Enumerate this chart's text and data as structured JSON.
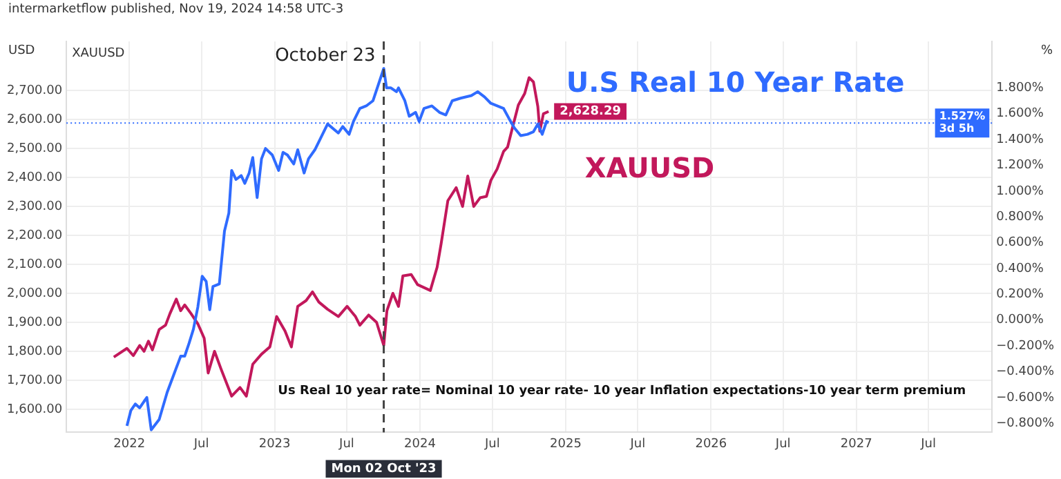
{
  "chart_data": {
    "type": "line",
    "title": "intermarketflow published, Nov 19, 2024 14:58 UTC-3",
    "subtitle": "XAUUSD",
    "ylabel": "USD",
    "y2label": "%",
    "xlim": [
      "2021-07-27",
      "2027-12-08"
    ],
    "xticks": [
      {
        "value": "2022-01-01",
        "label": "2022"
      },
      {
        "value": "2022-07-01",
        "label": "Jul"
      },
      {
        "value": "2023-01-01",
        "label": "2023"
      },
      {
        "value": "2023-07-01",
        "label": "Jul"
      },
      {
        "value": "2024-01-01",
        "label": "2024"
      },
      {
        "value": "2024-07-01",
        "label": "Jul"
      },
      {
        "value": "2025-01-01",
        "label": "2025"
      },
      {
        "value": "2025-07-01",
        "label": "Jul"
      },
      {
        "value": "2026-01-01",
        "label": "2026"
      },
      {
        "value": "2026-07-01",
        "label": "Jul"
      },
      {
        "value": "2027-01-01",
        "label": "2027"
      },
      {
        "value": "2027-07-01",
        "label": "Jul"
      }
    ],
    "ylim": [
      1520,
      2870
    ],
    "yticks": [
      {
        "value": 1600,
        "label": "1,600.00"
      },
      {
        "value": 1700,
        "label": "1,700.00"
      },
      {
        "value": 1800,
        "label": "1,800.00"
      },
      {
        "value": 1900,
        "label": "1,900.00"
      },
      {
        "value": 2000,
        "label": "2,000.00"
      },
      {
        "value": 2100,
        "label": "2,100.00"
      },
      {
        "value": 2200,
        "label": "2,200.00"
      },
      {
        "value": 2300,
        "label": "2,300.00"
      },
      {
        "value": 2400,
        "label": "2,400.00"
      },
      {
        "value": 2500,
        "label": "2,500.00"
      },
      {
        "value": 2600,
        "label": "2,600.00"
      },
      {
        "value": 2700,
        "label": "2,700.00"
      }
    ],
    "y2lim": [
      -0.87,
      2.16
    ],
    "y2ticks": [
      {
        "value": -0.8,
        "label": "−0.800%"
      },
      {
        "value": -0.6,
        "label": "−0.600%"
      },
      {
        "value": -0.4,
        "label": "−0.400%"
      },
      {
        "value": -0.2,
        "label": "−0.200%"
      },
      {
        "value": 0,
        "label": "0.000%"
      },
      {
        "value": 0.2,
        "label": "0.200%"
      },
      {
        "value": 0.4,
        "label": "0.400%"
      },
      {
        "value": 0.6,
        "label": "0.600%"
      },
      {
        "value": 0.8,
        "label": "0.800%"
      },
      {
        "value": 1.0,
        "label": "1.000%"
      },
      {
        "value": 1.2,
        "label": "1.200%"
      },
      {
        "value": 1.4,
        "label": "1.400%"
      },
      {
        "value": 1.6,
        "label": "1.600%"
      },
      {
        "value": 1.8,
        "label": "1.800%"
      }
    ],
    "grid": true,
    "legend": "top right",
    "marker": "none",
    "series": [
      {
        "name": "U.S Real 10 Year Rate",
        "color": "#2f6bff",
        "axis": "y2",
        "x": [
          "2021-12-26",
          "2022-01-05",
          "2022-01-16",
          "2022-01-27",
          "2022-02-07",
          "2022-02-14",
          "2022-02-25",
          "2022-03-17",
          "2022-04-06",
          "2022-04-23",
          "2022-05-10",
          "2022-05-20",
          "2022-05-31",
          "2022-06-11",
          "2022-06-22",
          "2022-07-03",
          "2022-07-13",
          "2022-07-22",
          "2022-07-30",
          "2022-08-15",
          "2022-08-28",
          "2022-09-08",
          "2022-09-15",
          "2022-09-26",
          "2022-10-09",
          "2022-10-18",
          "2022-10-29",
          "2022-11-07",
          "2022-11-18",
          "2022-11-29",
          "2022-12-09",
          "2022-12-26",
          "2023-01-11",
          "2023-01-22",
          "2023-02-02",
          "2023-02-18",
          "2023-02-28",
          "2023-03-16",
          "2023-03-27",
          "2023-04-12",
          "2023-04-28",
          "2023-05-14",
          "2023-06-10",
          "2023-06-21",
          "2023-07-07",
          "2023-07-18",
          "2023-08-03",
          "2023-08-19",
          "2023-09-05",
          "2023-10-02",
          "2023-10-09",
          "2023-10-20",
          "2023-11-03",
          "2023-11-08",
          "2023-11-24",
          "2023-12-05",
          "2023-12-21",
          "2023-12-30",
          "2024-01-11",
          "2024-01-31",
          "2024-02-19",
          "2024-03-06",
          "2024-03-22",
          "2024-04-12",
          "2024-05-09",
          "2024-05-25",
          "2024-06-11",
          "2024-06-27",
          "2024-07-13",
          "2024-07-29",
          "2024-08-12",
          "2024-08-25",
          "2024-09-10",
          "2024-09-27",
          "2024-10-12",
          "2024-10-23",
          "2024-11-03",
          "2024-11-14",
          "2024-11-19"
        ],
        "values": [
          -0.82,
          -0.7,
          -0.65,
          -0.68,
          -0.63,
          -0.6,
          -0.85,
          -0.77,
          -0.56,
          -0.42,
          -0.28,
          -0.28,
          -0.18,
          -0.07,
          0.1,
          0.34,
          0.3,
          0.08,
          0.26,
          0.28,
          0.69,
          0.83,
          1.16,
          1.09,
          1.12,
          1.06,
          1.14,
          1.26,
          0.95,
          1.25,
          1.33,
          1.28,
          1.16,
          1.3,
          1.28,
          1.21,
          1.32,
          1.14,
          1.25,
          1.32,
          1.42,
          1.52,
          1.45,
          1.5,
          1.44,
          1.54,
          1.64,
          1.66,
          1.7,
          1.95,
          1.8,
          1.8,
          1.77,
          1.8,
          1.7,
          1.58,
          1.61,
          1.54,
          1.64,
          1.66,
          1.61,
          1.59,
          1.7,
          1.72,
          1.74,
          1.77,
          1.73,
          1.68,
          1.66,
          1.64,
          1.56,
          1.49,
          1.43,
          1.44,
          1.46,
          1.52,
          1.44,
          1.54,
          1.53
        ]
      },
      {
        "name": "XAUUSD",
        "color": "#c2185b",
        "axis": "y",
        "x": [
          "2021-11-23",
          "2021-12-26",
          "2022-01-11",
          "2022-01-27",
          "2022-02-07",
          "2022-02-18",
          "2022-02-28",
          "2022-03-17",
          "2022-04-02",
          "2022-04-13",
          "2022-04-29",
          "2022-05-10",
          "2022-05-20",
          "2022-06-05",
          "2022-06-22",
          "2022-07-08",
          "2022-07-18",
          "2022-08-03",
          "2022-08-19",
          "2022-09-15",
          "2022-10-06",
          "2022-10-22",
          "2022-11-07",
          "2022-11-29",
          "2022-12-20",
          "2023-01-06",
          "2023-01-27",
          "2023-02-12",
          "2023-02-28",
          "2023-03-21",
          "2023-04-06",
          "2023-04-22",
          "2023-05-14",
          "2023-06-10",
          "2023-07-02",
          "2023-07-23",
          "2023-08-03",
          "2023-08-25",
          "2023-09-14",
          "2023-10-02",
          "2023-10-10",
          "2023-10-25",
          "2023-11-08",
          "2023-11-19",
          "2023-12-10",
          "2023-12-26",
          "2024-01-11",
          "2024-01-27",
          "2024-02-13",
          "2024-02-23",
          "2024-03-11",
          "2024-04-01",
          "2024-04-17",
          "2024-04-30",
          "2024-05-15",
          "2024-05-31",
          "2024-06-16",
          "2024-06-27",
          "2024-07-13",
          "2024-07-29",
          "2024-08-08",
          "2024-08-19",
          "2024-09-04",
          "2024-09-20",
          "2024-10-01",
          "2024-10-12",
          "2024-10-23",
          "2024-10-28",
          "2024-11-06",
          "2024-11-19"
        ],
        "values": [
          1780,
          1810,
          1785,
          1820,
          1800,
          1835,
          1805,
          1875,
          1890,
          1930,
          1980,
          1940,
          1960,
          1930,
          1895,
          1845,
          1725,
          1800,
          1740,
          1645,
          1675,
          1645,
          1755,
          1790,
          1815,
          1920,
          1870,
          1815,
          1955,
          1975,
          2005,
          1970,
          1945,
          1920,
          1955,
          1920,
          1890,
          1925,
          1900,
          1820,
          1940,
          2000,
          1955,
          2060,
          2065,
          2030,
          2020,
          2010,
          2090,
          2170,
          2320,
          2365,
          2300,
          2405,
          2300,
          2330,
          2335,
          2390,
          2430,
          2490,
          2505,
          2565,
          2650,
          2690,
          2745,
          2730,
          2645,
          2560,
          2620,
          2628
        ]
      }
    ],
    "ref_lines": [
      {
        "axis": "x",
        "value": "2023-10-02",
        "label": "October 23",
        "color": "#444444",
        "line_style": "dashed"
      },
      {
        "axis": "y2",
        "value": 1.527,
        "label": "1.527%\n3d 5h",
        "color": "#2f6bff",
        "line_style": "dotted"
      }
    ],
    "annotations": [
      "Us Real 10 year rate= Nominal 10 year rate- 10 year Inflation expectations-10 year term premium",
      "Mon 02 Oct '23",
      {
        "text": "2,628.29",
        "x": "2024-11-19",
        "y": 2628
      }
    ]
  }
}
